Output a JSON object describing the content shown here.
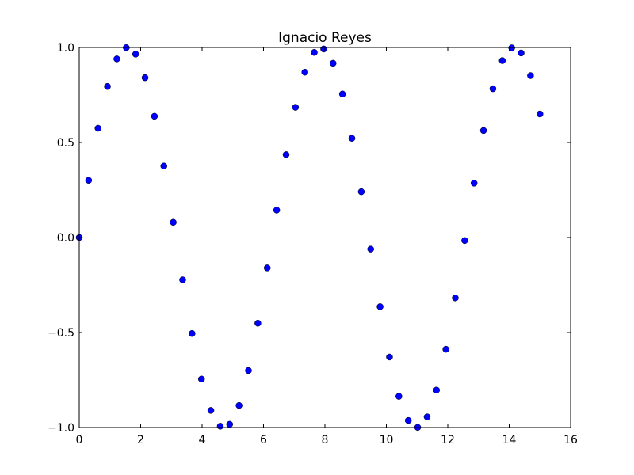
{
  "chart_data": {
    "type": "scatter",
    "title": "Ignacio Reyes",
    "xlabel": "",
    "ylabel": "",
    "xlim": [
      0,
      16
    ],
    "ylim": [
      -1.0,
      1.0
    ],
    "grid": false,
    "x_ticks": [
      0,
      2,
      4,
      6,
      8,
      10,
      12,
      14,
      16
    ],
    "x_tick_labels": [
      "0",
      "2",
      "4",
      "6",
      "8",
      "10",
      "12",
      "14",
      "16"
    ],
    "y_ticks": [
      -1.0,
      -0.5,
      0.0,
      0.5,
      1.0
    ],
    "y_tick_labels": [
      "−1.0",
      "−0.5",
      "0.0",
      "0.5",
      "1.0"
    ],
    "marker_color": "#0000ff",
    "marker_edge_color": "#000000",
    "series": [
      {
        "x": [
          0.0,
          0.306,
          0.612,
          0.918,
          1.224,
          1.531,
          1.837,
          2.143,
          2.449,
          2.755,
          3.061,
          3.367,
          3.673,
          3.98,
          4.286,
          4.592,
          4.898,
          5.204,
          5.51,
          5.816,
          6.122,
          6.429,
          6.735,
          7.041,
          7.347,
          7.653,
          7.959,
          8.265,
          8.571,
          8.878,
          9.184,
          9.49,
          9.796,
          10.102,
          10.408,
          10.714,
          11.02,
          11.327,
          11.633,
          11.939,
          12.245,
          12.551,
          12.857,
          13.163,
          13.469,
          13.776,
          14.082,
          14.388,
          14.694,
          15.0
        ],
        "y": [
          0.0,
          0.301,
          0.575,
          0.795,
          0.94,
          0.999,
          0.965,
          0.841,
          0.638,
          0.376,
          0.08,
          -0.223,
          -0.505,
          -0.745,
          -0.91,
          -0.993,
          -0.983,
          -0.884,
          -0.7,
          -0.451,
          -0.16,
          0.144,
          0.436,
          0.685,
          0.87,
          0.974,
          0.992,
          0.917,
          0.755,
          0.522,
          0.241,
          -0.061,
          -0.364,
          -0.629,
          -0.836,
          -0.963,
          -0.999,
          -0.944,
          -0.803,
          -0.588,
          -0.318,
          -0.016,
          0.286,
          0.563,
          0.783,
          0.931,
          0.998,
          0.971,
          0.852,
          0.65
        ]
      }
    ]
  }
}
